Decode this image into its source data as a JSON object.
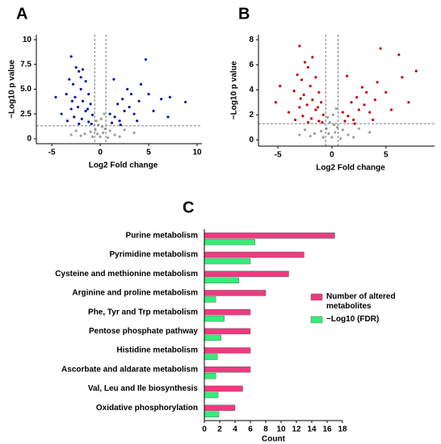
{
  "chart_data": [
    {
      "type": "scatter",
      "panel": "A",
      "xlabel": "Log2 Fold change",
      "ylabel": "−Log10 p value",
      "xlim": [
        -6.6,
        10.5
      ],
      "xticks": [
        -5,
        0,
        5,
        10
      ],
      "ylim": [
        -0.5,
        10.5
      ],
      "yticks": [
        0,
        {
          "value": 2.5,
          "label": "2.5"
        },
        {
          "value": 5,
          "label": "5.0"
        },
        {
          "value": 7.5,
          "label": "7.5"
        },
        10
      ],
      "vlines": [
        -0.58,
        0.58
      ],
      "hline": 1.3,
      "series": [
        {
          "color": "#9e9e9e",
          "x": [
            0,
            0.3,
            -0.3,
            0.5,
            -0.5,
            0.2,
            -0.2,
            0.1,
            -0.4,
            0.4,
            1.0,
            -1.0,
            1.5,
            -1.6,
            2.5,
            -2.5,
            3.5,
            -3.0,
            0.8,
            -0.8,
            2.0,
            -2.0
          ],
          "values": [
            0.2,
            0.6,
            0.5,
            1.0,
            0.9,
            1.2,
            1.4,
            2.0,
            1.8,
            2.5,
            0.8,
            0.7,
            0.4,
            0.5,
            0.9,
            0.8,
            0.6,
            0.4,
            0.1,
            0.2,
            0.2,
            0.3
          ]
        },
        {
          "color": "#0a1aa8",
          "x": [
            -3.0,
            -2.5,
            -2.2,
            -1.8,
            -3.2,
            -2.8,
            -1.5,
            -2.0,
            -3.5,
            -2.6,
            -1.2,
            -1.8,
            -2.3,
            -3.0,
            -1.0,
            -1.5,
            -4.0,
            -2.7,
            -0.8,
            -1.9,
            -3.4,
            -1.2,
            -2.2,
            -0.9,
            -4.6,
            -2.0,
            -1.3,
            -2.9,
            1.2,
            1.5,
            2.0,
            2.5,
            1.8,
            3.0,
            2.3,
            3.5,
            4.0,
            1.0,
            2.8,
            4.2,
            5.0,
            6.3,
            7.2,
            8.8,
            5.5,
            3.8,
            4.7,
            7.0,
            1.4,
            2.1,
            3.2
          ],
          "values": [
            8.3,
            7.2,
            6.8,
            7.0,
            6.0,
            5.5,
            5.8,
            5.0,
            4.5,
            4.2,
            4.5,
            3.8,
            3.2,
            3.0,
            3.5,
            2.8,
            2.5,
            2.2,
            2.4,
            2.0,
            1.8,
            1.7,
            1.5,
            1.5,
            4.2,
            6.2,
            3.0,
            3.8,
            1.6,
            2.2,
            1.8,
            2.8,
            3.5,
            3.2,
            4.0,
            2.5,
            3.8,
            2.5,
            5.0,
            5.5,
            4.5,
            4.0,
            4.2,
            3.7,
            2.8,
            1.8,
            8.0,
            2.2,
            6.0,
            1.4,
            4.5
          ]
        }
      ]
    },
    {
      "type": "scatter",
      "panel": "B",
      "xlabel": "Log2 Fold change",
      "ylabel": "−Log10 p value",
      "xlim": [
        -6.8,
        9.5
      ],
      "xticks": [
        -5,
        0,
        5
      ],
      "ylim": [
        -0.5,
        8.4
      ],
      "yticks": [
        0,
        2,
        4,
        6,
        8
      ],
      "vlines": [
        -0.58,
        0.58
      ],
      "hline": 1.3,
      "series": [
        {
          "color": "#9e9e9e",
          "x": [
            0,
            0.3,
            -0.3,
            0.5,
            -0.5,
            0.2,
            -0.2,
            0.1,
            -0.4,
            0.4,
            1.0,
            -1.0,
            1.5,
            -1.6,
            2.5,
            -2.5,
            3.5,
            -3.0,
            0.8,
            -0.8,
            2.0,
            -2.0
          ],
          "values": [
            0.2,
            0.6,
            0.5,
            1.0,
            0.9,
            1.2,
            1.4,
            2.0,
            1.8,
            2.5,
            0.8,
            0.7,
            0.4,
            0.5,
            0.9,
            0.8,
            0.6,
            0.4,
            0.1,
            0.2,
            0.2,
            0.3
          ]
        },
        {
          "color": "#cc0000",
          "x": [
            -3.0,
            -2.5,
            -2.2,
            -1.8,
            -3.2,
            -2.8,
            -1.5,
            -2.0,
            -3.5,
            -2.6,
            -1.2,
            -1.8,
            -2.3,
            -3.0,
            -1.0,
            -1.5,
            -4.0,
            -2.7,
            -0.8,
            -1.9,
            -3.4,
            -1.2,
            -2.2,
            -0.9,
            -4.8,
            -5.2,
            -1.3,
            -2.9,
            1.2,
            1.5,
            2.0,
            2.5,
            1.8,
            3.0,
            2.3,
            3.5,
            4.0,
            1.0,
            2.8,
            4.2,
            5.0,
            6.2,
            7.1,
            7.8,
            5.5,
            3.8,
            4.5,
            6.5,
            1.4,
            2.1,
            3.2
          ],
          "values": [
            7.5,
            6.2,
            5.8,
            6.6,
            5.2,
            4.8,
            5.0,
            4.3,
            3.9,
            3.6,
            3.8,
            3.2,
            2.8,
            2.6,
            3.0,
            2.4,
            2.2,
            1.9,
            2.0,
            1.7,
            1.6,
            1.5,
            1.4,
            1.4,
            4.3,
            3.0,
            2.6,
            3.3,
            1.5,
            1.9,
            1.6,
            2.4,
            3.0,
            2.8,
            3.4,
            2.2,
            3.2,
            2.2,
            4.2,
            4.6,
            3.8,
            6.8,
            3.0,
            5.5,
            2.4,
            1.6,
            7.3,
            5.0,
            5.1,
            1.3,
            3.8
          ]
        }
      ]
    },
    {
      "type": "barh",
      "panel": "C",
      "xlabel": "Count",
      "categories": [
        "Purine metabolism",
        "Pyrimidine metabolism",
        "Cysteine and methionine metabolism",
        "Arginine and proline metabolism",
        "Phe, Tyr and Trp metabolism",
        "Pentose phosphate pathway",
        "Histidine metabolism",
        "Ascorbate and aldarate metabolism",
        "Val, Leu and Ile biosynthesis",
        "Oxidative phosphorylation"
      ],
      "xlim": [
        0,
        18
      ],
      "xticks": [
        0,
        2,
        4,
        6,
        8,
        10,
        12,
        14,
        16,
        18
      ],
      "series": [
        {
          "name": "Number of altered metabolites",
          "color": "#ee3b80",
          "values": [
            17,
            13,
            11,
            8,
            6,
            6,
            6,
            6,
            5,
            4
          ]
        },
        {
          "name": "−Log10 (FDR)",
          "color": "#33ee77",
          "values": [
            6.6,
            6.0,
            4.5,
            1.5,
            2.6,
            2.2,
            1.7,
            1.5,
            1.8,
            1.9
          ]
        }
      ]
    }
  ]
}
